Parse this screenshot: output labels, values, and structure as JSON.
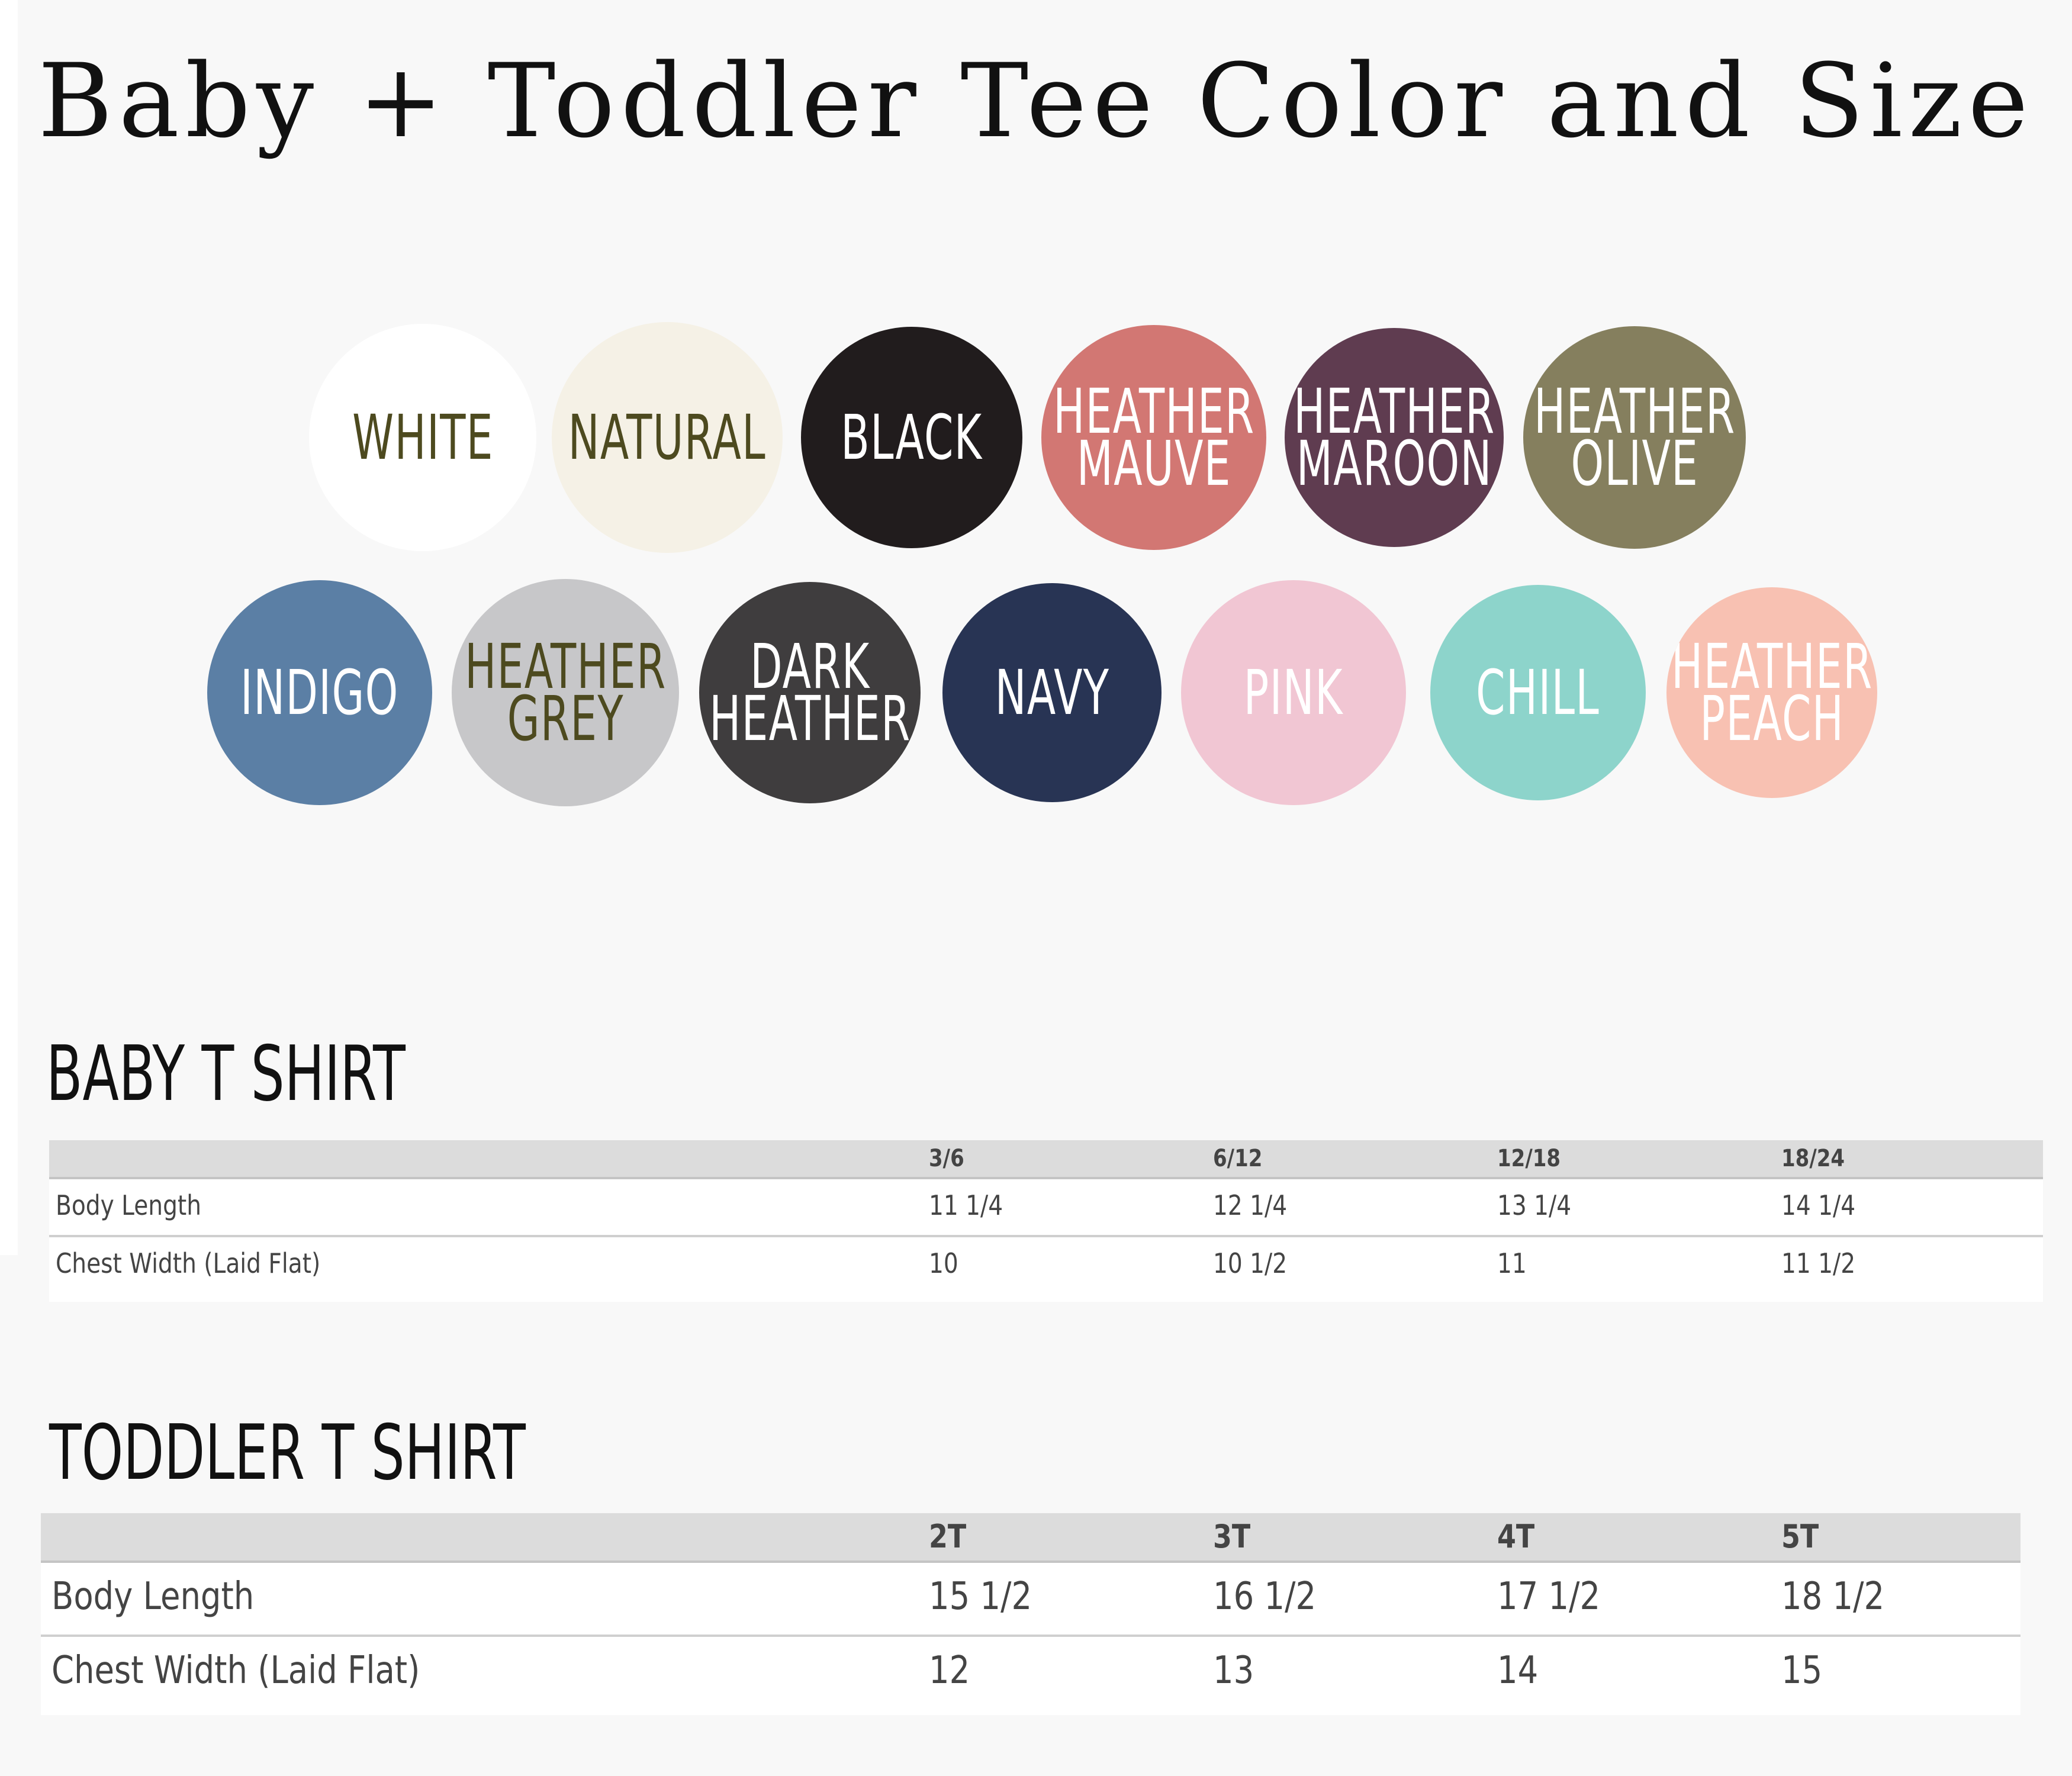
{
  "title": "Baby + Toddler Tee Color and Size",
  "colors": [
    {
      "label": "WHITE",
      "fill": "#ffffff",
      "text": "#4d4a1f"
    },
    {
      "label": "NATURAL",
      "fill": "#f5f1e6",
      "text": "#4d4a1f"
    },
    {
      "label": "BLACK",
      "fill": "#211c1d",
      "text": "#ffffff"
    },
    {
      "label": "HEATHER\nMAUVE",
      "fill": "#d27773",
      "text": "#ffffff"
    },
    {
      "label": "HEATHER\nMAROON",
      "fill": "#5f3c50",
      "text": "#ffffff"
    },
    {
      "label": "HEATHER\nOLIVE",
      "fill": "#857f5e",
      "text": "#ffffff"
    },
    {
      "label": "INDIGO",
      "fill": "#5b7fa5",
      "text": "#ffffff"
    },
    {
      "label": "HEATHER\nGREY",
      "fill": "#c7c7c9",
      "text": "#4d4a1f"
    },
    {
      "label": "DARK\nHEATHER",
      "fill": "#3f3d3e",
      "text": "#ffffff"
    },
    {
      "label": "NAVY",
      "fill": "#283454",
      "text": "#ffffff"
    },
    {
      "label": "PINK",
      "fill": "#f1c6d3",
      "text": "#ffffff"
    },
    {
      "label": "CHILL",
      "fill": "#8dd4cb",
      "text": "#ffffff"
    },
    {
      "label": "HEATHER\nPEACH",
      "fill": "#f8c1b2",
      "text": "#ffffff"
    }
  ],
  "baby": {
    "heading": "BABY T SHIRT",
    "columns": [
      "3/6",
      "6/12",
      "12/18",
      "18/24"
    ],
    "rows": [
      {
        "label": "Body Length",
        "values": [
          "11 1/4",
          "12 1/4",
          "13 1/4",
          "14 1/4"
        ]
      },
      {
        "label": "Chest Width (Laid Flat)",
        "values": [
          "10",
          "10 1/2",
          "11",
          "11 1/2"
        ]
      }
    ]
  },
  "toddler": {
    "heading": "TODDLER T SHIRT",
    "columns": [
      "2T",
      "3T",
      "4T",
      "5T"
    ],
    "rows": [
      {
        "label": "Body Length",
        "values": [
          "15 1/2",
          "16 1/2",
          "17 1/2",
          "18 1/2"
        ]
      },
      {
        "label": "Chest Width (Laid Flat)",
        "values": [
          "12",
          "13",
          "14",
          "15"
        ]
      }
    ]
  }
}
